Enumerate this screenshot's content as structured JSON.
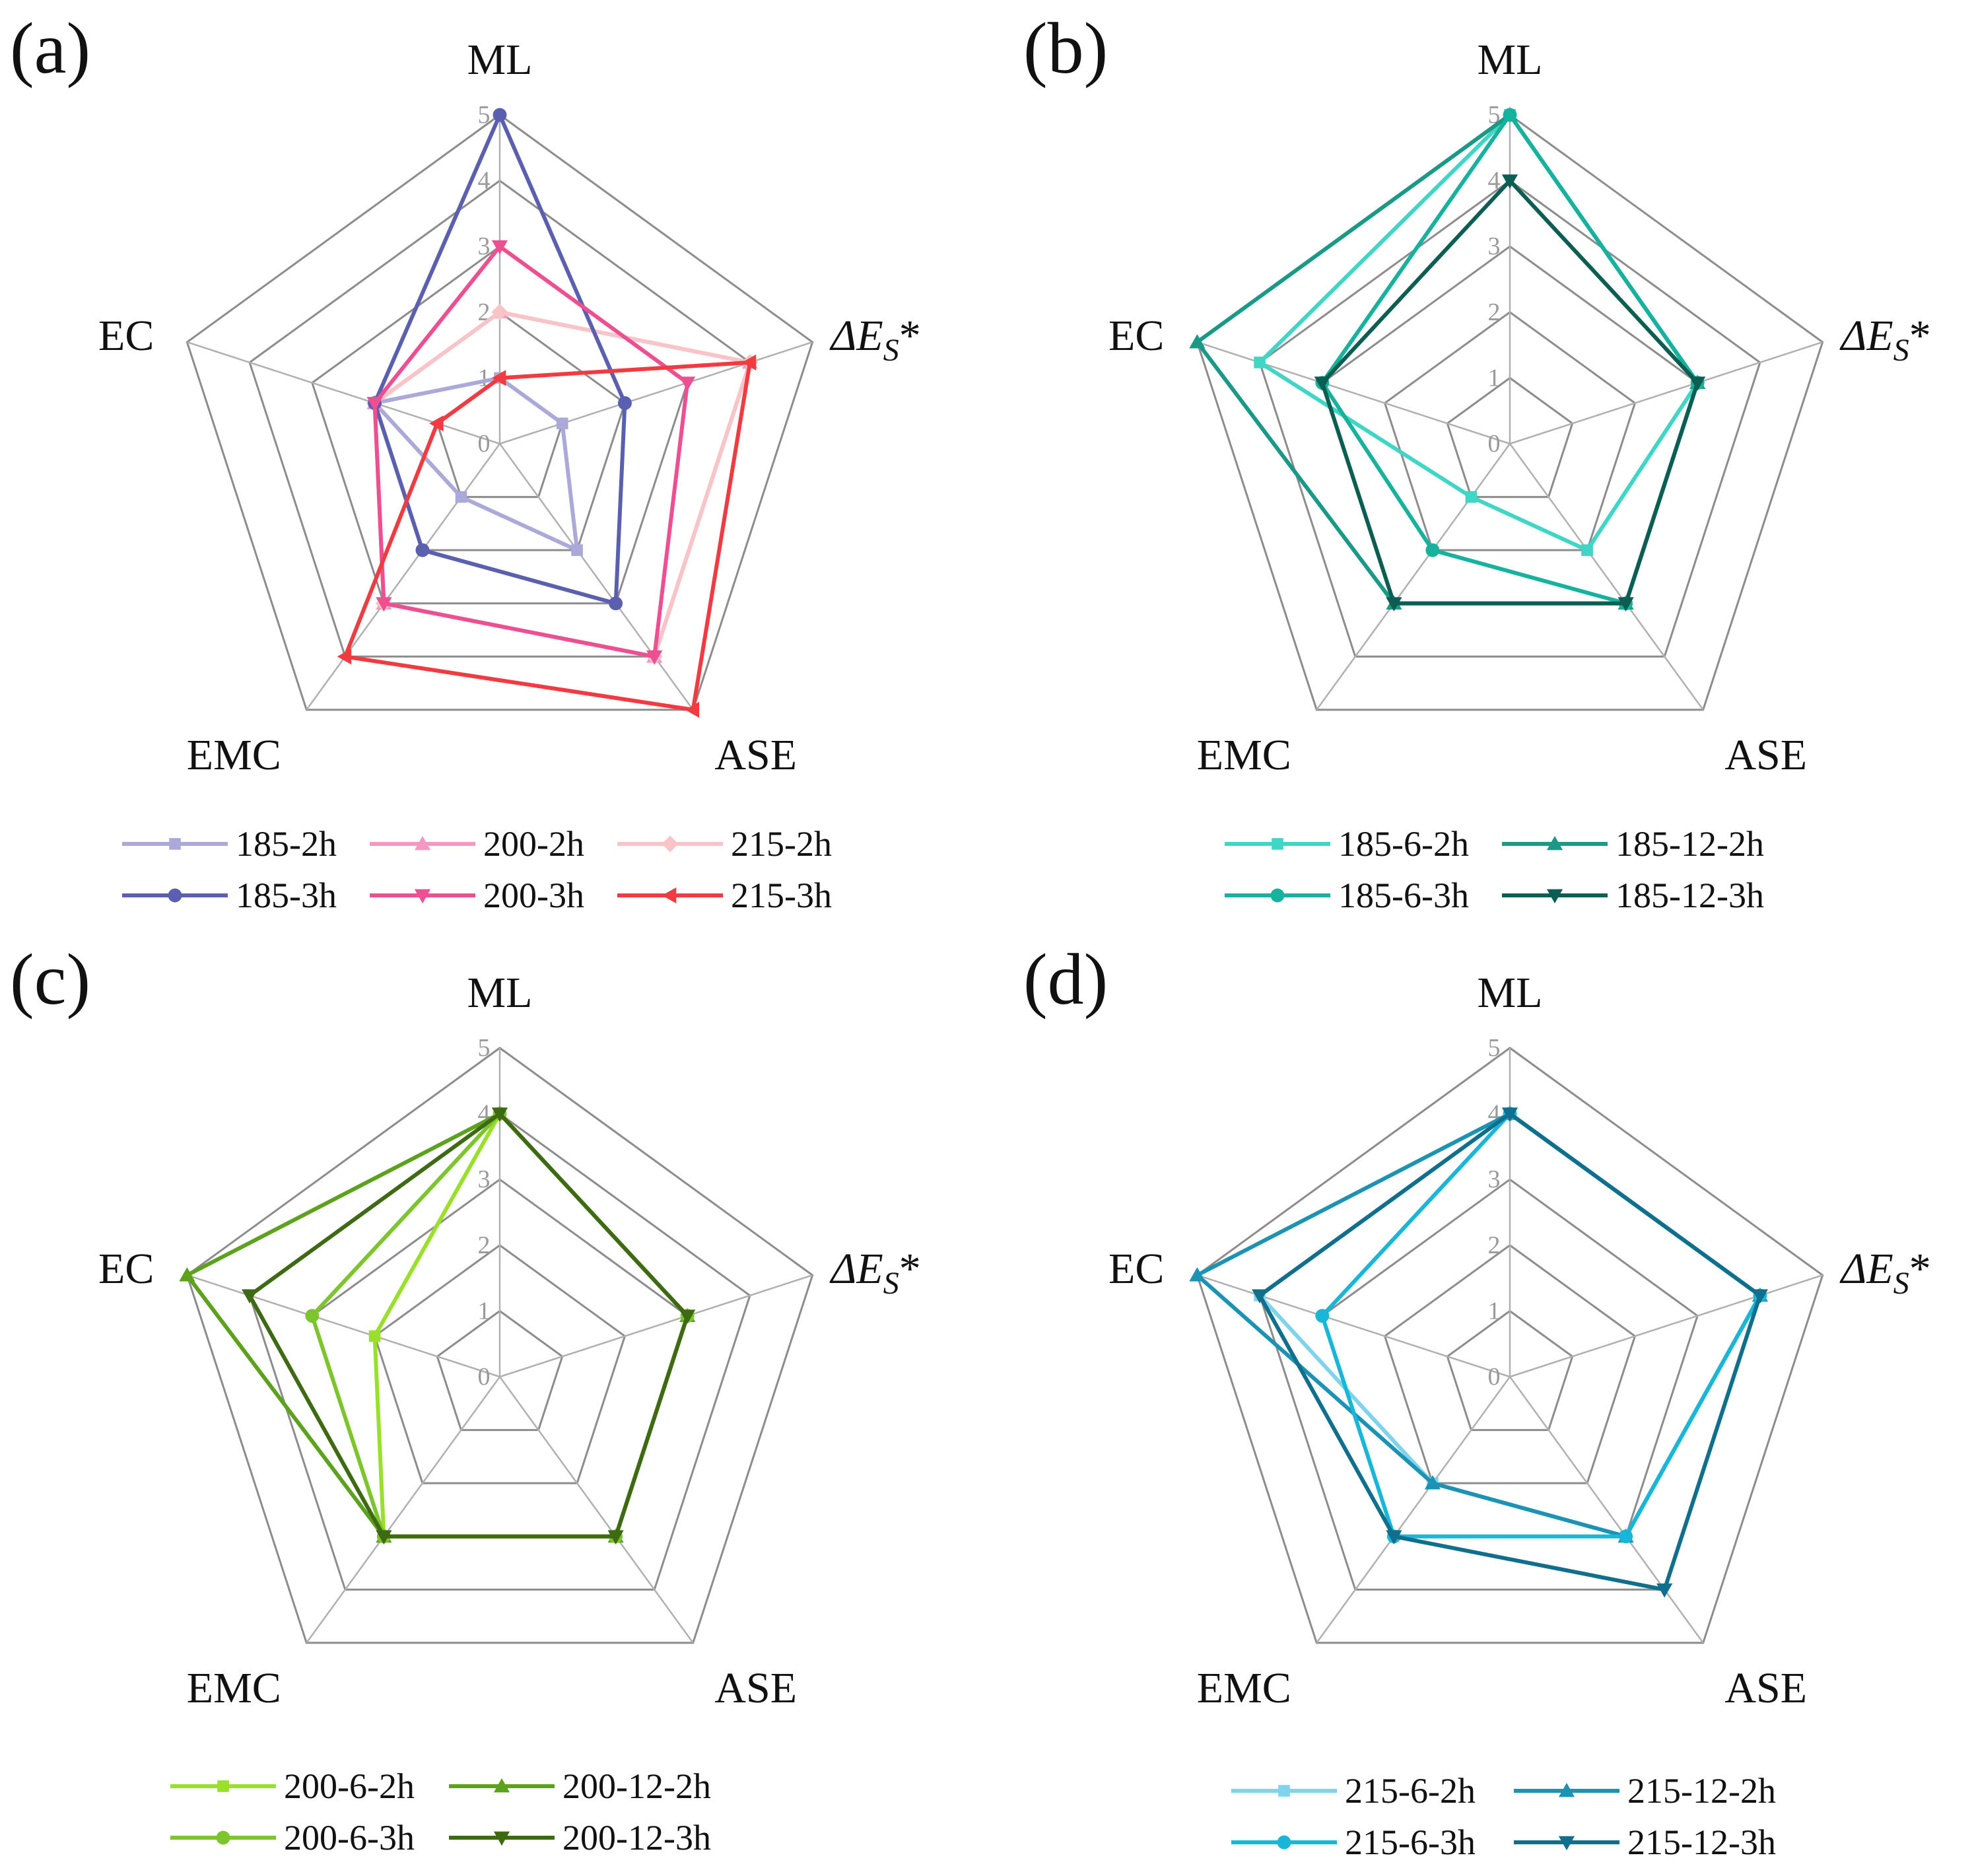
{
  "chart_data": [
    {
      "type": "radar",
      "panel_label": "(a)",
      "axes": [
        "ML",
        "ΔE_S*",
        "ASE",
        "EMC",
        "EC"
      ],
      "scale_ticks": [
        "0",
        "1",
        "2",
        "3",
        "4",
        "5"
      ],
      "rlim": [
        0,
        5
      ],
      "legend_columns": 3,
      "series": [
        {
          "name": "185-2h",
          "color": "#aaa9d9",
          "marker": "square",
          "values": [
            1,
            1,
            2,
            1,
            2
          ]
        },
        {
          "name": "200-2h",
          "color": "#f49ac2",
          "marker": "triangle-up",
          "values": [
            2,
            4,
            4,
            3,
            2
          ]
        },
        {
          "name": "215-2h",
          "color": "#f9c4c8",
          "marker": "diamond",
          "values": [
            2,
            4,
            4,
            3,
            2
          ]
        },
        {
          "name": "185-3h",
          "color": "#5b5fb0",
          "marker": "circle",
          "values": [
            5,
            2,
            3,
            2,
            2
          ]
        },
        {
          "name": "200-3h",
          "color": "#ee4f90",
          "marker": "triangle-down",
          "values": [
            3,
            3,
            4,
            3,
            2
          ]
        },
        {
          "name": "215-3h",
          "color": "#f23b41",
          "marker": "triangle-left",
          "values": [
            1,
            4,
            5,
            4,
            1
          ]
        }
      ]
    },
    {
      "type": "radar",
      "panel_label": "(b)",
      "axes": [
        "ML",
        "ΔE_S*",
        "ASE",
        "EMC",
        "EC"
      ],
      "scale_ticks": [
        "0",
        "1",
        "2",
        "3",
        "4",
        "5"
      ],
      "rlim": [
        0,
        5
      ],
      "legend_columns": 2,
      "series": [
        {
          "name": "185-6-2h",
          "color": "#40d6c6",
          "marker": "square",
          "values": [
            5,
            3,
            2,
            1,
            4
          ]
        },
        {
          "name": "185-12-2h",
          "color": "#1a9a86",
          "marker": "triangle-up",
          "values": [
            5,
            3,
            3,
            3,
            5
          ]
        },
        {
          "name": "185-6-3h",
          "color": "#17b29e",
          "marker": "circle",
          "values": [
            5,
            3,
            3,
            2,
            3
          ]
        },
        {
          "name": "185-12-3h",
          "color": "#0c5e52",
          "marker": "triangle-down",
          "values": [
            4,
            3,
            3,
            3,
            3
          ]
        }
      ]
    },
    {
      "type": "radar",
      "panel_label": "(c)",
      "axes": [
        "ML",
        "ΔE_S*",
        "ASE",
        "EMC",
        "EC"
      ],
      "scale_ticks": [
        "0",
        "1",
        "2",
        "3",
        "4",
        "5"
      ],
      "rlim": [
        0,
        5
      ],
      "legend_columns": 2,
      "series": [
        {
          "name": "200-6-2h",
          "color": "#99e02a",
          "marker": "square",
          "values": [
            4,
            3,
            3,
            3,
            2
          ]
        },
        {
          "name": "200-12-2h",
          "color": "#5ca21c",
          "marker": "triangle-up",
          "values": [
            4,
            3,
            3,
            3,
            5
          ]
        },
        {
          "name": "200-6-3h",
          "color": "#7cc52d",
          "marker": "circle",
          "values": [
            4,
            3,
            3,
            3,
            3
          ]
        },
        {
          "name": "200-12-3h",
          "color": "#3e6a13",
          "marker": "triangle-down",
          "values": [
            4,
            3,
            3,
            3,
            4
          ]
        }
      ]
    },
    {
      "type": "radar",
      "panel_label": "(d)",
      "axes": [
        "ML",
        "ΔE_S*",
        "ASE",
        "EMC",
        "EC"
      ],
      "scale_ticks": [
        "0",
        "1",
        "2",
        "3",
        "4",
        "5"
      ],
      "rlim": [
        0,
        5
      ],
      "legend_columns": 2,
      "series": [
        {
          "name": "215-6-2h",
          "color": "#7fd3ec",
          "marker": "square",
          "values": [
            4,
            4,
            3,
            2,
            4
          ]
        },
        {
          "name": "215-12-2h",
          "color": "#1c92b4",
          "marker": "triangle-up",
          "values": [
            4,
            4,
            3,
            2,
            5
          ]
        },
        {
          "name": "215-6-3h",
          "color": "#18b6d8",
          "marker": "circle",
          "values": [
            4,
            4,
            3,
            3,
            3
          ]
        },
        {
          "name": "215-12-3h",
          "color": "#106f8c",
          "marker": "triangle-down",
          "values": [
            4,
            4,
            4,
            3,
            4
          ]
        }
      ]
    }
  ]
}
